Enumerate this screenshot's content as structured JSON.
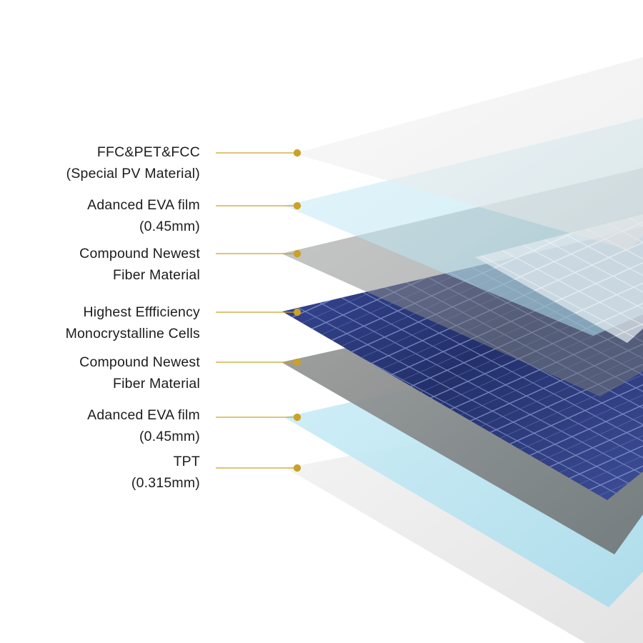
{
  "layers": [
    {
      "line1": "FFC&PET&FCC",
      "line2": "(Special PV Material)"
    },
    {
      "line1": "Adanced EVA film",
      "line2": "(0.45mm)"
    },
    {
      "line1": "Compound Newest",
      "line2": "Fiber Material"
    },
    {
      "line1": "Highest Effficiency",
      "line2": "Monocrystalline Cells"
    },
    {
      "line1": "Compound Newest",
      "line2": "Fiber Material"
    },
    {
      "line1": "Adanced EVA film",
      "line2": "(0.45mm)"
    },
    {
      "line1": "TPT",
      "line2": "(0.315mm)"
    }
  ],
  "colors": {
    "leader_line": "#c9a227",
    "pv_film": "#ececec",
    "eva_film": "#bfe8f4",
    "fiber": "#8c8c8c",
    "cells": "#2b3a7a",
    "tpt": "#e8e8e8"
  }
}
